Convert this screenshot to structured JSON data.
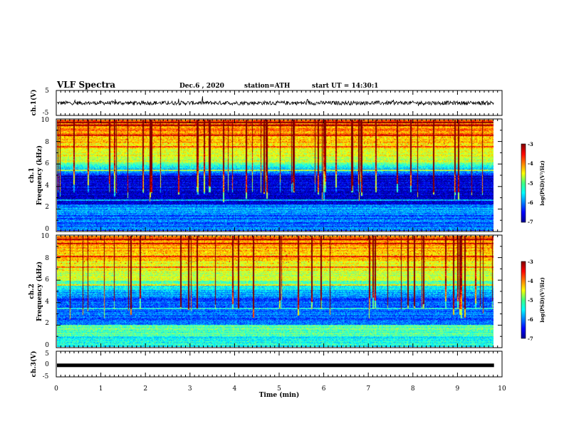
{
  "header": {
    "title": "VLF Spectra",
    "date": "Dec.6 , 2020",
    "station": "station=ATH",
    "start": "start UT = 14:30:1"
  },
  "chart_data": {
    "type": "heatmap",
    "x_axis": {
      "label": "Time (min)",
      "range": [
        0,
        10
      ],
      "ticks": [
        "0",
        "1",
        "2",
        "3",
        "4",
        "5",
        "6",
        "7",
        "8",
        "9",
        "10"
      ]
    },
    "panels": [
      {
        "name": "ch.1 waveform",
        "type": "line",
        "ylabel": "ch.1(V)",
        "ylim": [
          -5,
          5
        ],
        "yticks": [
          "5",
          "-5"
        ],
        "x_end": 9.82,
        "mean": 0
      },
      {
        "name": "ch.1 spectrogram",
        "type": "heatmap",
        "ylabel": "ch.1",
        "ylabel2": "Frequency (kHz)",
        "ylim": [
          0,
          10
        ],
        "yticks": [
          "0",
          "2",
          "4",
          "6",
          "8",
          "10"
        ],
        "x_end": 9.82,
        "colorbar_label": "log(PSD)(V²/Hz)",
        "colorbar_range": [
          -7,
          -3
        ],
        "colorbar_ticks": [
          "-3",
          "-4",
          "-5",
          "-6",
          "-7"
        ]
      },
      {
        "name": "ch.2 spectrogram",
        "type": "heatmap",
        "ylabel": "ch.2",
        "ylabel2": "Frequency (kHz)",
        "ylim": [
          0,
          10
        ],
        "yticks": [
          "0",
          "2",
          "4",
          "6",
          "8",
          "10"
        ],
        "x_end": 9.82,
        "colorbar_label": "log(PSD)(V²/Hz)",
        "colorbar_range": [
          -7,
          -3
        ],
        "colorbar_ticks": [
          "-3",
          "-4",
          "-5",
          "-6",
          "-7"
        ]
      },
      {
        "name": "ch.3 waveform",
        "type": "line",
        "ylabel": "ch.3(V)",
        "ylim": [
          -5,
          5
        ],
        "yticks": [
          "5",
          "0",
          "-5"
        ],
        "x_end": 9.82,
        "level": -0.5
      }
    ]
  }
}
